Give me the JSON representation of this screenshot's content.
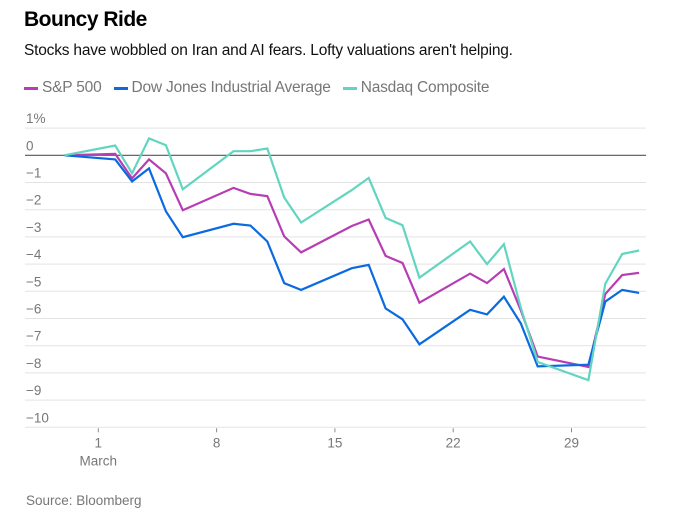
{
  "title": "Bouncy Ride",
  "subtitle": "Stocks have wobbled on Iran and AI fears. Lofty valuations aren't helping.",
  "source": "Source: Bloomberg",
  "chart_data": {
    "type": "line",
    "title": "Bouncy Ride",
    "subtitle": "Stocks have wobbled on Iran and AI fears. Lofty valuations aren't helping.",
    "xlabel": "",
    "ylabel": "",
    "ylim": [
      -10,
      1
    ],
    "y_ticks": [
      1,
      0,
      -1,
      -2,
      -3,
      -4,
      -5,
      -6,
      -7,
      -8,
      -9,
      -10
    ],
    "y_tick_labels": [
      "1%",
      "0",
      "−1",
      "−2",
      "−3",
      "−4",
      "−5",
      "−6",
      "−7",
      "−8",
      "−9",
      "−10"
    ],
    "x_day_range": [
      -1.5,
      33.5
    ],
    "x_ticks": [
      {
        "day": 1,
        "label": "1",
        "sublabel": "March"
      },
      {
        "day": 8,
        "label": "8",
        "sublabel": ""
      },
      {
        "day": 15,
        "label": "15",
        "sublabel": ""
      },
      {
        "day": 22,
        "label": "22",
        "sublabel": ""
      },
      {
        "day": 29,
        "label": "29",
        "sublabel": ""
      }
    ],
    "x_dates": [
      "Feb 27",
      "Mar 2",
      "Mar 3",
      "Mar 4",
      "Mar 5",
      "Mar 6",
      "Mar 9",
      "Mar 10",
      "Mar 11",
      "Mar 12",
      "Mar 13",
      "Mar 16",
      "Mar 17",
      "Mar 18",
      "Mar 19",
      "Mar 20",
      "Mar 23",
      "Mar 24",
      "Mar 25",
      "Mar 26",
      "Mar 27",
      "Mar 30",
      "Mar 31",
      "Apr 1",
      "Apr 2"
    ],
    "x": [
      -1,
      2,
      3,
      4,
      5,
      6,
      9,
      10,
      11,
      12,
      13,
      16,
      17,
      18,
      19,
      20,
      23,
      24,
      25,
      26,
      27,
      30,
      31,
      32,
      33
    ],
    "grid": true,
    "legend": "top-left",
    "series": [
      {
        "name": "S&P 500",
        "color": "#b63db3",
        "values": [
          0,
          0.05,
          -0.85,
          -0.15,
          -0.66,
          -2.02,
          -1.2,
          -1.42,
          -1.5,
          -2.98,
          -3.57,
          -2.6,
          -2.36,
          -3.7,
          -3.96,
          -5.42,
          -4.35,
          -4.7,
          -4.18,
          -5.7,
          -7.4,
          -7.78,
          -5.1,
          -4.4,
          -4.32
        ]
      },
      {
        "name": "Dow Jones Industrial Average",
        "color": "#0a6ae0",
        "values": [
          0,
          -0.15,
          -0.96,
          -0.48,
          -2.06,
          -3.01,
          -2.52,
          -2.58,
          -3.17,
          -4.7,
          -4.95,
          -4.15,
          -4.03,
          -5.63,
          -6.03,
          -6.95,
          -5.68,
          -5.85,
          -5.2,
          -6.18,
          -7.76,
          -7.7,
          -5.38,
          -4.95,
          -5.06
        ]
      },
      {
        "name": "Nasdaq Composite",
        "color": "#62d5c1",
        "values": [
          0,
          0.36,
          -0.66,
          0.62,
          0.37,
          -1.25,
          0.15,
          0.15,
          0.25,
          -1.55,
          -2.47,
          -1.28,
          -0.83,
          -2.3,
          -2.57,
          -4.5,
          -3.17,
          -4.0,
          -3.27,
          -5.6,
          -7.6,
          -8.27,
          -4.72,
          -3.63,
          -3.5
        ]
      }
    ]
  }
}
